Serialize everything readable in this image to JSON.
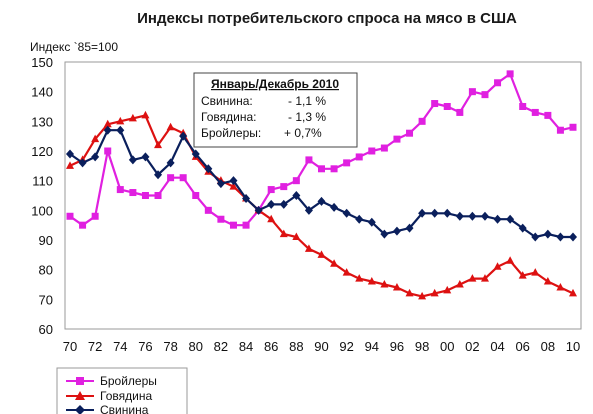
{
  "chart_data": {
    "type": "line",
    "title": "Индексы потребительского спроса на мясо в США",
    "ylabel": "Индекс `85=100",
    "xlabel": "",
    "ylim": [
      60,
      150
    ],
    "yticks": [
      60,
      70,
      80,
      90,
      100,
      110,
      120,
      130,
      140,
      150
    ],
    "xlim": [
      1970,
      2010
    ],
    "xticks": [
      1970,
      1972,
      1974,
      1976,
      1978,
      1980,
      1982,
      1984,
      1986,
      1988,
      1990,
      1992,
      1994,
      1996,
      1998,
      2000,
      2002,
      2004,
      2006,
      2008,
      2010
    ],
    "xtick_labels": [
      "70",
      "72",
      "74",
      "76",
      "78",
      "80",
      "82",
      "84",
      "86",
      "88",
      "90",
      "92",
      "94",
      "96",
      "98",
      "00",
      "02",
      "04",
      "06",
      "08",
      "10"
    ],
    "grid": false,
    "x": [
      1970,
      1971,
      1972,
      1973,
      1974,
      1975,
      1976,
      1977,
      1978,
      1979,
      1980,
      1981,
      1982,
      1983,
      1984,
      1985,
      1986,
      1987,
      1988,
      1989,
      1990,
      1991,
      1992,
      1993,
      1994,
      1995,
      1996,
      1997,
      1998,
      1999,
      2000,
      2001,
      2002,
      2003,
      2004,
      2005,
      2006,
      2007,
      2008,
      2009,
      2010
    ],
    "series": [
      {
        "name": "Бройлеры",
        "color": "#e020e0",
        "marker": "square",
        "values": [
          98,
          95,
          98,
          120,
          107,
          106,
          105,
          105,
          111,
          111,
          105,
          100,
          97,
          95,
          95,
          100,
          107,
          108,
          110,
          117,
          114,
          114,
          116,
          118,
          120,
          121,
          124,
          126,
          130,
          136,
          135,
          133,
          140,
          139,
          143,
          146,
          135,
          133,
          132,
          127,
          128
        ]
      },
      {
        "name": "Говядина",
        "color": "#dd1111",
        "marker": "triangle",
        "values": [
          115,
          117,
          124,
          129,
          130,
          131,
          132,
          122,
          128,
          126,
          118,
          113,
          110,
          108,
          104,
          100,
          97,
          92,
          91,
          87,
          85,
          82,
          79,
          77,
          76,
          75,
          74,
          72,
          71,
          72,
          73,
          75,
          77,
          77,
          81,
          83,
          78,
          79,
          76,
          74,
          72
        ]
      },
      {
        "name": "Свинина",
        "color": "#0a1f5c",
        "marker": "diamond",
        "values": [
          119,
          116,
          118,
          127,
          127,
          117,
          118,
          112,
          116,
          125,
          119,
          114,
          109,
          110,
          104,
          100,
          102,
          102,
          105,
          100,
          103,
          101,
          99,
          97,
          96,
          92,
          93,
          94,
          99,
          99,
          99,
          98,
          98,
          98,
          97,
          97,
          94,
          91,
          92,
          91,
          91
        ]
      }
    ],
    "legend_position": "bottom-left",
    "annotation": {
      "title": "Январь/Декабрь 2010",
      "lines": [
        {
          "label": "Свинина:",
          "value": "- 1,1 %",
          "color": "#dd1111"
        },
        {
          "label": "Говядина:",
          "value": "- 1,3 %",
          "color": "#dd1111"
        },
        {
          "label": "Бройлеры:",
          "value": "+ 0,7%",
          "color": "#119911"
        }
      ]
    }
  }
}
